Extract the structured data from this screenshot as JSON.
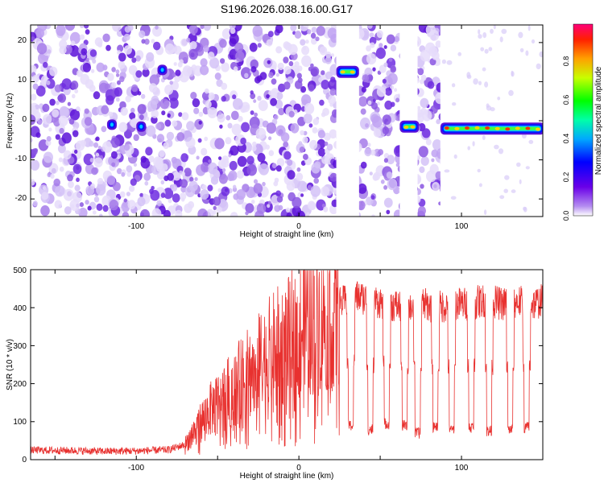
{
  "title": "S196.2026.038.16.00.G17",
  "chart_data": [
    {
      "type": "heatmap",
      "name": "spectrogram",
      "xlabel": "Height of straight line (km)",
      "ylabel": "Frequency (Hz)",
      "xlim": [
        -165,
        150
      ],
      "ylim": [
        -24.5,
        24.5
      ],
      "xticks": [
        "-100",
        "0",
        "100"
      ],
      "yticks": [
        "20",
        "10",
        "0",
        "-10",
        "-20"
      ],
      "colorbar": {
        "label": "Normalized spectral amplitude",
        "range": [
          0.0,
          0.98
        ],
        "ticks": [
          "0.0",
          "0.2",
          "0.4",
          "0.6",
          "0.8"
        ]
      },
      "blank_gaps_km": [
        [
          23,
          37
        ],
        [
          62,
          73
        ],
        [
          87,
          150
        ]
      ],
      "features": [
        {
          "x": [
            24,
            36
          ],
          "freq": 12.5,
          "amplitude": 0.55
        },
        {
          "x": [
            63,
            73
          ],
          "freq": -1.5,
          "amplitude": 0.8
        },
        {
          "x": [
            88,
            150
          ],
          "freq": -2,
          "amplitude": 0.85
        },
        {
          "x": [
            -117,
            -113
          ],
          "freq": -1,
          "amplitude": 0.4
        },
        {
          "x": [
            -99,
            -95
          ],
          "freq": -1.5,
          "amplitude": 0.35
        },
        {
          "x": [
            -86,
            -82
          ],
          "freq": 13,
          "amplitude": 0.3
        }
      ]
    },
    {
      "type": "line",
      "name": "snr",
      "xlabel": "Height of straight line (km)",
      "ylabel": "SNR (10 * v/v)",
      "xlim": [
        -165,
        150
      ],
      "ylim": [
        0,
        500
      ],
      "xticks": [
        "-100",
        "0",
        "100"
      ],
      "yticks": [
        "0",
        "100",
        "200",
        "300",
        "400",
        "500"
      ],
      "color": "#e8312f",
      "series": [
        {
          "name": "SNR",
          "x": [
            -165,
            -140,
            -120,
            -100,
            -80,
            -70,
            -62,
            -55,
            -45,
            -35,
            -25,
            -15,
            -5,
            5,
            15,
            25,
            35,
            45,
            55,
            65,
            75,
            85,
            95,
            105,
            115,
            125,
            135,
            145,
            150
          ],
          "values": [
            25,
            24,
            22,
            23,
            26,
            40,
            90,
            130,
            170,
            210,
            250,
            290,
            320,
            355,
            380,
            410,
            430,
            420,
            410,
            400,
            410,
            400,
            410,
            410,
            420,
            410,
            415,
            410,
            420
          ]
        }
      ],
      "dropouts": [
        {
          "x": 32,
          "min": 90
        },
        {
          "x": 44,
          "min": 80
        },
        {
          "x": 54,
          "min": 95
        },
        {
          "x": 65,
          "min": 90
        },
        {
          "x": 73,
          "min": 70
        },
        {
          "x": 84,
          "min": 85
        },
        {
          "x": 94,
          "min": 80
        },
        {
          "x": 106,
          "min": 85
        },
        {
          "x": 117,
          "min": 75
        },
        {
          "x": 130,
          "min": 80
        },
        {
          "x": 140,
          "min": 85
        }
      ]
    }
  ]
}
